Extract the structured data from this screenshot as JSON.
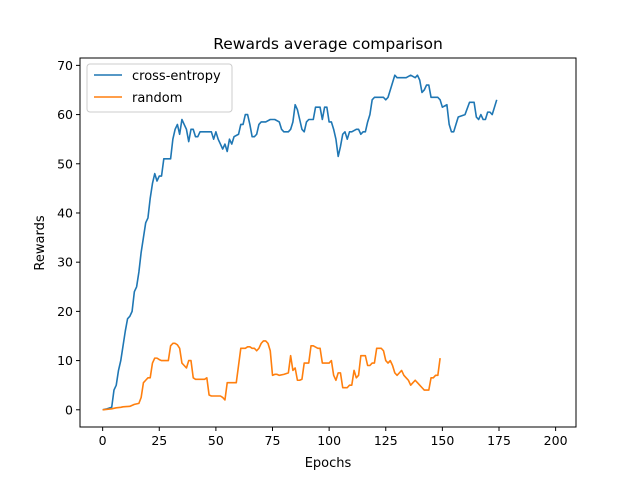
{
  "chart_data": {
    "type": "line",
    "title": "Rewards average comparison",
    "xlabel": "Epochs",
    "ylabel": "Rewards",
    "xlim": [
      -10,
      209
    ],
    "ylim": [
      -3.5,
      71.5
    ],
    "xticks": [
      0,
      25,
      50,
      75,
      100,
      125,
      150,
      175,
      200
    ],
    "yticks": [
      0,
      10,
      20,
      30,
      40,
      50,
      60,
      70
    ],
    "grid": false,
    "legend_position": "upper left",
    "series": [
      {
        "name": "cross-entropy",
        "color": "#1f77b4",
        "points": [
          [
            0,
            0
          ],
          [
            2,
            0.2
          ],
          [
            4,
            0.5
          ],
          [
            5,
            4
          ],
          [
            6,
            5
          ],
          [
            7,
            8
          ],
          [
            8,
            10
          ],
          [
            9,
            13
          ],
          [
            10,
            16
          ],
          [
            11,
            18.5
          ],
          [
            12,
            19
          ],
          [
            13,
            20
          ],
          [
            14,
            24
          ],
          [
            15,
            25
          ],
          [
            16,
            28
          ],
          [
            17,
            32
          ],
          [
            18,
            35
          ],
          [
            19,
            38
          ],
          [
            20,
            39
          ],
          [
            21,
            43
          ],
          [
            22,
            46
          ],
          [
            23,
            48
          ],
          [
            24,
            46.5
          ],
          [
            25,
            47.5
          ],
          [
            26,
            47.5
          ],
          [
            27,
            51
          ],
          [
            30,
            51
          ],
          [
            31,
            55
          ],
          [
            32,
            57
          ],
          [
            33,
            58
          ],
          [
            34,
            56
          ],
          [
            35,
            59
          ],
          [
            36,
            58
          ],
          [
            37,
            57
          ],
          [
            38,
            54.5
          ],
          [
            39,
            57
          ],
          [
            40,
            57
          ],
          [
            41,
            55.5
          ],
          [
            42,
            55.5
          ],
          [
            43,
            56.5
          ],
          [
            48,
            56.5
          ],
          [
            49,
            55
          ],
          [
            50,
            56.5
          ],
          [
            51,
            55
          ],
          [
            52,
            54
          ],
          [
            53,
            53
          ],
          [
            54,
            54
          ],
          [
            55,
            52.5
          ],
          [
            56,
            55
          ],
          [
            57,
            54
          ],
          [
            58,
            55.5
          ],
          [
            60,
            56
          ],
          [
            61,
            58
          ],
          [
            62,
            58
          ],
          [
            63,
            60
          ],
          [
            64,
            60
          ],
          [
            65,
            58
          ],
          [
            66,
            55.5
          ],
          [
            67,
            55.5
          ],
          [
            68,
            56
          ],
          [
            69,
            58
          ],
          [
            70,
            58.5
          ],
          [
            72,
            58.5
          ],
          [
            74,
            59
          ],
          [
            76,
            59
          ],
          [
            78,
            58.5
          ],
          [
            79,
            57
          ],
          [
            80,
            56.5
          ],
          [
            82,
            56.5
          ],
          [
            83,
            57
          ],
          [
            84,
            58.5
          ],
          [
            85,
            62
          ],
          [
            86,
            61
          ],
          [
            87,
            59
          ],
          [
            88,
            57
          ],
          [
            89,
            56.5
          ],
          [
            90,
            58.5
          ],
          [
            91,
            59
          ],
          [
            93,
            59
          ],
          [
            94,
            61.5
          ],
          [
            96,
            61.5
          ],
          [
            97,
            59
          ],
          [
            98,
            61.5
          ],
          [
            99,
            61.5
          ],
          [
            100,
            58.5
          ],
          [
            101,
            58.5
          ],
          [
            102,
            57
          ],
          [
            103,
            55
          ],
          [
            104,
            51.5
          ],
          [
            105,
            53.5
          ],
          [
            106,
            56
          ],
          [
            107,
            56.5
          ],
          [
            108,
            55
          ],
          [
            109,
            56.5
          ],
          [
            110,
            56.5
          ],
          [
            112,
            57
          ],
          [
            113,
            57
          ],
          [
            114,
            56
          ],
          [
            115,
            56.5
          ],
          [
            116,
            56.5
          ],
          [
            117,
            58.5
          ],
          [
            118,
            60
          ],
          [
            119,
            63
          ],
          [
            120,
            63.5
          ],
          [
            122,
            63.5
          ],
          [
            124,
            63.5
          ],
          [
            125,
            63
          ],
          [
            126,
            63.5
          ],
          [
            127,
            65
          ],
          [
            128,
            66.5
          ],
          [
            129,
            68
          ],
          [
            130,
            67.5
          ],
          [
            132,
            67.5
          ],
          [
            134,
            67.5
          ],
          [
            136,
            68
          ],
          [
            138,
            67.5
          ],
          [
            139,
            68
          ],
          [
            140,
            67
          ],
          [
            141,
            64.5
          ],
          [
            142,
            65
          ],
          [
            143,
            66
          ],
          [
            144,
            66
          ],
          [
            145,
            63.5
          ],
          [
            148,
            63.5
          ],
          [
            149,
            63
          ],
          [
            150,
            61.5
          ],
          [
            152,
            62
          ],
          [
            153,
            58
          ],
          [
            154,
            56.5
          ],
          [
            155,
            56.5
          ],
          [
            156,
            58
          ],
          [
            157,
            59.5
          ],
          [
            160,
            60
          ],
          [
            162,
            62.5
          ],
          [
            164,
            62.5
          ],
          [
            165,
            59.5
          ],
          [
            166,
            59
          ],
          [
            167,
            60
          ],
          [
            168,
            59
          ],
          [
            169,
            59
          ],
          [
            170,
            60.5
          ],
          [
            171,
            60.5
          ],
          [
            172,
            60
          ],
          [
            174,
            63
          ]
        ]
      },
      {
        "name": "random",
        "color": "#ff7f0e",
        "points": [
          [
            0,
            0
          ],
          [
            2,
            0.1
          ],
          [
            4,
            0.2
          ],
          [
            5,
            0.3
          ],
          [
            6,
            0.4
          ],
          [
            8,
            0.5
          ],
          [
            9,
            0.6
          ],
          [
            12,
            0.7
          ],
          [
            14,
            1.1
          ],
          [
            15,
            1.2
          ],
          [
            16,
            1.3
          ],
          [
            17,
            2.5
          ],
          [
            18,
            5.5
          ],
          [
            19,
            6
          ],
          [
            20,
            6.5
          ],
          [
            21,
            6.5
          ],
          [
            22,
            9.5
          ],
          [
            23,
            10.5
          ],
          [
            24,
            10.5
          ],
          [
            25,
            10.2
          ],
          [
            26,
            10
          ],
          [
            29,
            10
          ],
          [
            30,
            13
          ],
          [
            31,
            13.5
          ],
          [
            32,
            13.5
          ],
          [
            33,
            13.2
          ],
          [
            34,
            12.5
          ],
          [
            35,
            9.5
          ],
          [
            36,
            9
          ],
          [
            37,
            8.5
          ],
          [
            38,
            10
          ],
          [
            39,
            10
          ],
          [
            40,
            6.5
          ],
          [
            41,
            6.2
          ],
          [
            45,
            6.2
          ],
          [
            46,
            6.5
          ],
          [
            47,
            3
          ],
          [
            48,
            2.8
          ],
          [
            52,
            2.8
          ],
          [
            53,
            2.5
          ],
          [
            54,
            2
          ],
          [
            55,
            5.5
          ],
          [
            59,
            5.5
          ],
          [
            60,
            9
          ],
          [
            61,
            12.5
          ],
          [
            62,
            12.5
          ],
          [
            63,
            12.5
          ],
          [
            64,
            12.8
          ],
          [
            65,
            12.8
          ],
          [
            66,
            12.5
          ],
          [
            67,
            12.5
          ],
          [
            68,
            12
          ],
          [
            69,
            12.5
          ],
          [
            70,
            13.5
          ],
          [
            71,
            14
          ],
          [
            72,
            14
          ],
          [
            73,
            13.5
          ],
          [
            74,
            12
          ],
          [
            75,
            7
          ],
          [
            76,
            7.2
          ],
          [
            77,
            7.2
          ],
          [
            78,
            7
          ],
          [
            80,
            7.2
          ],
          [
            82,
            7.5
          ],
          [
            83,
            11
          ],
          [
            84,
            8
          ],
          [
            85,
            8.5
          ],
          [
            86,
            6
          ],
          [
            87,
            6
          ],
          [
            88,
            6.2
          ],
          [
            89,
            9.5
          ],
          [
            91,
            9.5
          ],
          [
            92,
            13
          ],
          [
            93,
            13
          ],
          [
            95,
            12.5
          ],
          [
            96,
            12.5
          ],
          [
            97,
            9.5
          ],
          [
            98,
            9.5
          ],
          [
            100,
            9.5
          ],
          [
            101,
            10
          ],
          [
            102,
            7
          ],
          [
            103,
            6
          ],
          [
            104,
            7.5
          ],
          [
            105,
            7.5
          ],
          [
            106,
            4.5
          ],
          [
            108,
            4.5
          ],
          [
            109,
            5
          ],
          [
            110,
            5
          ],
          [
            111,
            8
          ],
          [
            112,
            6.5
          ],
          [
            113,
            7
          ],
          [
            114,
            11
          ],
          [
            116,
            11
          ],
          [
            117,
            9
          ],
          [
            118,
            9
          ],
          [
            119,
            9.5
          ],
          [
            120,
            9.5
          ],
          [
            121,
            12.5
          ],
          [
            123,
            12.5
          ],
          [
            124,
            12
          ],
          [
            125,
            10
          ],
          [
            126,
            9.5
          ],
          [
            127,
            10
          ],
          [
            128,
            9
          ],
          [
            129,
            7.5
          ],
          [
            130,
            7
          ],
          [
            131,
            7.5
          ],
          [
            132,
            8
          ],
          [
            133,
            7
          ],
          [
            134,
            6.5
          ],
          [
            135,
            6
          ],
          [
            136,
            5
          ],
          [
            137,
            5.5
          ],
          [
            138,
            6
          ],
          [
            139,
            5.5
          ],
          [
            140,
            5
          ],
          [
            141,
            4.5
          ],
          [
            142,
            4
          ],
          [
            144,
            4
          ],
          [
            145,
            6.5
          ],
          [
            146,
            6.5
          ],
          [
            147,
            7
          ],
          [
            148,
            7
          ],
          [
            149,
            10.5
          ]
        ]
      }
    ]
  }
}
